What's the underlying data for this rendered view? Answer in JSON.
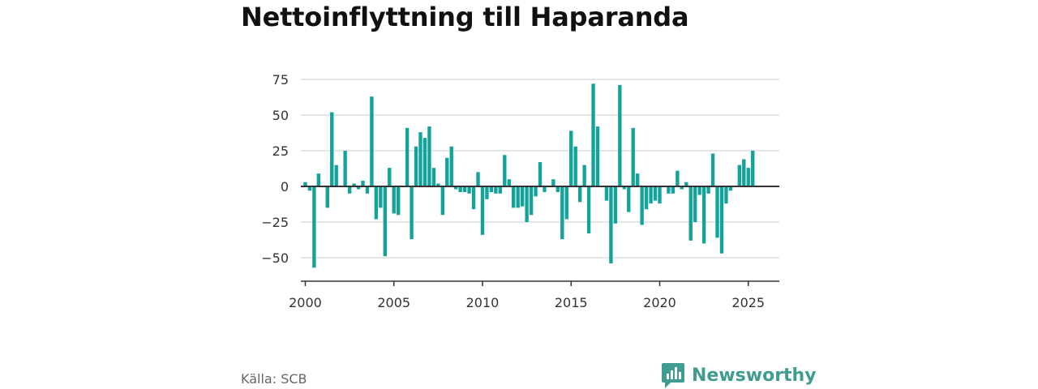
{
  "title": "Nettoinflyttning till Haparanda",
  "source": "Källa: SCB",
  "brand": {
    "name": "Newsworthy",
    "color": "#3f9c8f"
  },
  "colors": {
    "bar": "#12a39a",
    "grid": "#dddddd",
    "axis": "#333333"
  },
  "chart_data": {
    "type": "bar",
    "title": "Nettoinflyttning till Haparanda",
    "xlabel": "",
    "ylabel": "",
    "frequency": "quarterly",
    "xlim": [
      1999.75,
      2026.75
    ],
    "ylim": [
      -65,
      80
    ],
    "x_ticks": [
      2000,
      2005,
      2010,
      2015,
      2020,
      2025
    ],
    "y_ticks": [
      -50,
      -25,
      0,
      25,
      50,
      75
    ],
    "grid": true,
    "start": "2000-Q1",
    "values": [
      3,
      -3,
      -57,
      9,
      0,
      -15,
      52,
      15,
      0,
      25,
      -5,
      2,
      -2,
      4,
      -5,
      63,
      -23,
      -15,
      -49,
      13,
      -19,
      -20,
      0,
      41,
      -37,
      28,
      38,
      34,
      42,
      13,
      2,
      -20,
      20,
      28,
      -2,
      -4,
      -4,
      -5,
      -16,
      10,
      -34,
      -9,
      -4,
      -5,
      -5,
      22,
      5,
      -15,
      -15,
      -14,
      -25,
      -20,
      -7,
      17,
      -4,
      0,
      5,
      -4,
      -37,
      -23,
      39,
      28,
      -11,
      15,
      -33,
      72,
      42,
      0,
      -10,
      -54,
      -26,
      71,
      -2,
      -18,
      41,
      9,
      -27,
      -16,
      -12,
      -10,
      -12,
      0,
      -5,
      -5,
      11,
      -2,
      3,
      -38,
      -25,
      -6,
      -40,
      -5,
      23,
      -36,
      -47,
      -12,
      -3,
      0,
      15,
      19,
      13,
      25
    ]
  }
}
